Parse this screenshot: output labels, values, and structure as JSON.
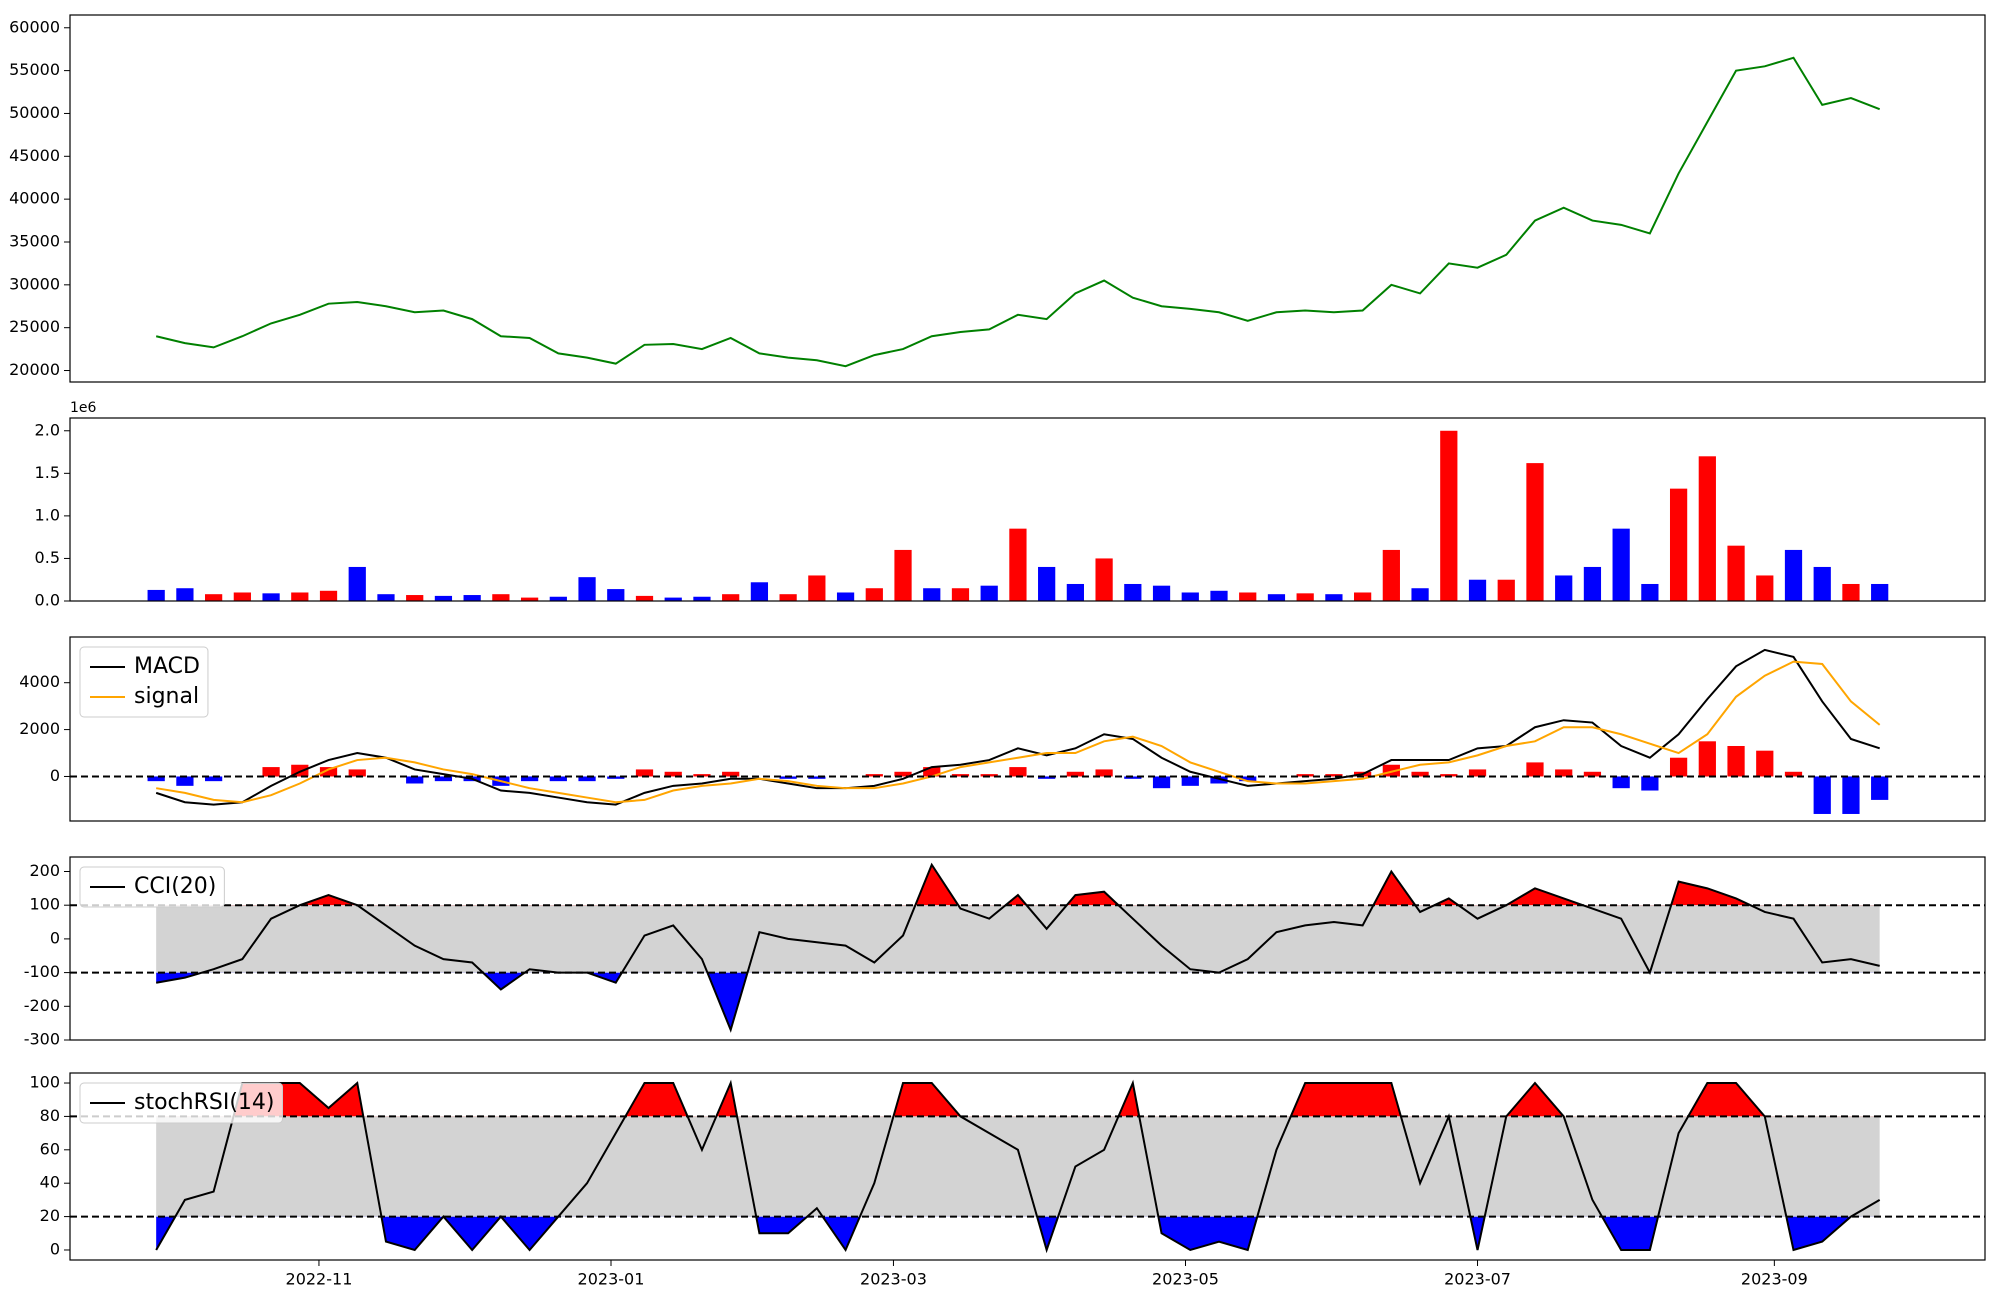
{
  "chart_data": [
    {
      "type": "line",
      "x": [
        -34,
        -28,
        -22,
        -16,
        -10,
        -4,
        2,
        8,
        14,
        20,
        26,
        32,
        38,
        44,
        50,
        56,
        62,
        68,
        74,
        80,
        86,
        92,
        98,
        104,
        110,
        116,
        122,
        128,
        134,
        140,
        146,
        152,
        158,
        164,
        170,
        176,
        182,
        188,
        194,
        200,
        206,
        212,
        218,
        224,
        230,
        236,
        242,
        248,
        254,
        260,
        266,
        272,
        278,
        284,
        290,
        296,
        302,
        308,
        314,
        320,
        326
      ],
      "values": [
        24000,
        23200,
        22700,
        24000,
        25500,
        26500,
        27800,
        28000,
        27500,
        26800,
        27000,
        26000,
        24000,
        23800,
        22000,
        21500,
        20800,
        23000,
        23100,
        22500,
        23800,
        22000,
        21500,
        21200,
        20500,
        21800,
        22500,
        24000,
        24500,
        24800,
        26500,
        26000,
        29000,
        30500,
        28500,
        27500,
        27200,
        26800,
        25800,
        26800,
        27000,
        26800,
        27000,
        30000,
        29000,
        32500,
        32000,
        33500,
        37500,
        39000,
        37500,
        37000,
        36000,
        43000,
        49000,
        55000,
        55500,
        56500,
        51000,
        51800,
        50500
      ],
      "color": "#008000",
      "xlim": [
        -52,
        348
      ],
      "ylim": [
        18660,
        61490
      ],
      "yticks": [
        20000,
        25000,
        30000,
        35000,
        40000,
        45000,
        50000,
        55000,
        60000
      ]
    },
    {
      "type": "bar",
      "x": [
        -34,
        -28,
        -22,
        -16,
        -10,
        -4,
        2,
        8,
        14,
        20,
        26,
        32,
        38,
        44,
        50,
        56,
        62,
        68,
        74,
        80,
        86,
        92,
        98,
        104,
        110,
        116,
        122,
        128,
        134,
        140,
        146,
        152,
        158,
        164,
        170,
        176,
        182,
        188,
        194,
        200,
        206,
        212,
        218,
        224,
        230,
        236,
        242,
        248,
        254,
        260,
        266,
        272,
        278,
        284,
        290,
        296,
        302,
        308,
        314,
        320,
        326
      ],
      "values": [
        130000,
        150000,
        80000,
        100000,
        90000,
        100000,
        120000,
        400000,
        80000,
        70000,
        60000,
        70000,
        80000,
        40000,
        50000,
        280000,
        140000,
        60000,
        40000,
        50000,
        80000,
        220000,
        80000,
        300000,
        100000,
        150000,
        600000,
        150000,
        150000,
        180000,
        850000,
        400000,
        200000,
        500000,
        200000,
        180000,
        100000,
        120000,
        100000,
        80000,
        90000,
        80000,
        100000,
        600000,
        150000,
        2000000,
        250000,
        250000,
        1620000,
        300000,
        400000,
        850000,
        200000,
        1320000,
        1700000,
        650000,
        300000,
        600000,
        400000,
        200000,
        200000
      ],
      "colors": [
        "#0000ff",
        "#0000ff",
        "#ff0000",
        "#ff0000",
        "#0000ff",
        "#ff0000",
        "#ff0000",
        "#0000ff",
        "#0000ff",
        "#ff0000",
        "#0000ff",
        "#0000ff",
        "#ff0000",
        "#ff0000",
        "#0000ff",
        "#0000ff",
        "#0000ff",
        "#ff0000",
        "#0000ff",
        "#0000ff",
        "#ff0000",
        "#0000ff",
        "#ff0000",
        "#ff0000",
        "#0000ff",
        "#ff0000",
        "#ff0000",
        "#0000ff",
        "#ff0000",
        "#0000ff",
        "#ff0000",
        "#0000ff",
        "#0000ff",
        "#ff0000",
        "#0000ff",
        "#0000ff",
        "#0000ff",
        "#0000ff",
        "#ff0000",
        "#0000ff",
        "#ff0000",
        "#0000ff",
        "#ff0000",
        "#ff0000",
        "#0000ff",
        "#ff0000",
        "#0000ff",
        "#ff0000",
        "#ff0000",
        "#0000ff",
        "#0000ff",
        "#0000ff",
        "#0000ff",
        "#ff0000",
        "#ff0000",
        "#ff0000",
        "#ff0000",
        "#0000ff",
        "#0000ff",
        "#ff0000",
        "#0000ff"
      ],
      "offset_label": "1e6",
      "xlim": [
        -52,
        348
      ],
      "ylim": [
        0,
        2150000
      ],
      "yticks": [
        {
          "value": 0,
          "label": "0.0"
        },
        {
          "value": 500000,
          "label": "0.5"
        },
        {
          "value": 1000000,
          "label": "1.0"
        },
        {
          "value": 1500000,
          "label": "1.5"
        },
        {
          "value": 2000000,
          "label": "2.0"
        }
      ]
    },
    {
      "type": "line",
      "x": [
        -34,
        -28,
        -22,
        -16,
        -10,
        -4,
        2,
        8,
        14,
        20,
        26,
        32,
        38,
        44,
        50,
        56,
        62,
        68,
        74,
        80,
        86,
        92,
        98,
        104,
        110,
        116,
        122,
        128,
        134,
        140,
        146,
        152,
        158,
        164,
        170,
        176,
        182,
        188,
        194,
        200,
        206,
        212,
        218,
        224,
        230,
        236,
        242,
        248,
        254,
        260,
        266,
        272,
        278,
        284,
        290,
        296,
        302,
        308,
        314,
        320,
        326
      ],
      "series": [
        {
          "name": "MACD",
          "color": "#000000",
          "values": [
            -700,
            -1100,
            -1200,
            -1100,
            -400,
            200,
            700,
            1000,
            800,
            300,
            100,
            -100,
            -600,
            -700,
            -900,
            -1100,
            -1200,
            -700,
            -400,
            -300,
            -100,
            -100,
            -300,
            -500,
            -500,
            -400,
            -100,
            400,
            500,
            700,
            1200,
            900,
            1200,
            1800,
            1600,
            800,
            200,
            -100,
            -400,
            -300,
            -200,
            -100,
            100,
            700,
            700,
            700,
            1200,
            1300,
            2100,
            2400,
            2300,
            1300,
            800,
            1800,
            3300,
            4700,
            5400,
            5100,
            3200,
            1600,
            1200
          ]
        },
        {
          "name": "signal",
          "color": "#ffa500",
          "values": [
            -500,
            -700,
            -1000,
            -1100,
            -800,
            -300,
            300,
            700,
            800,
            600,
            300,
            100,
            -200,
            -500,
            -700,
            -900,
            -1100,
            -1000,
            -600,
            -400,
            -300,
            -100,
            -200,
            -400,
            -500,
            -500,
            -300,
            0,
            400,
            600,
            800,
            1000,
            1000,
            1500,
            1700,
            1300,
            600,
            200,
            -200,
            -300,
            -300,
            -200,
            -100,
            200,
            500,
            600,
            900,
            1300,
            1500,
            2100,
            2100,
            1800,
            1400,
            1000,
            1800,
            3400,
            4300,
            4900,
            4800,
            3200,
            2200
          ]
        }
      ],
      "histogram": {
        "up_color": "#ff0000",
        "down_color": "#0000ff",
        "values": [
          -200,
          -400,
          -200,
          0,
          400,
          500,
          400,
          300,
          0,
          -300,
          -200,
          -200,
          -400,
          -200,
          -200,
          -200,
          -100,
          300,
          200,
          100,
          200,
          0,
          -100,
          -100,
          0,
          100,
          200,
          400,
          100,
          100,
          400,
          -100,
          200,
          300,
          -100,
          -500,
          -400,
          -300,
          -200,
          0,
          100,
          100,
          200,
          500,
          200,
          100,
          300,
          0,
          600,
          300,
          200,
          -500,
          -600,
          800,
          1500,
          1300,
          1100,
          200,
          -1600,
          -1600,
          -1000
        ]
      },
      "reference_lines": [
        0
      ],
      "legend": "upper left",
      "xlim": [
        -52,
        348
      ],
      "ylim": [
        -1900,
        5950
      ],
      "yticks": [
        0,
        2000,
        4000
      ]
    },
    {
      "type": "line",
      "x": [
        -34,
        -28,
        -22,
        -16,
        -10,
        -4,
        2,
        8,
        14,
        20,
        26,
        32,
        38,
        44,
        50,
        56,
        62,
        68,
        74,
        80,
        86,
        92,
        98,
        104,
        110,
        116,
        122,
        128,
        134,
        140,
        146,
        152,
        158,
        164,
        170,
        176,
        182,
        188,
        194,
        200,
        206,
        212,
        218,
        224,
        230,
        236,
        242,
        248,
        254,
        260,
        266,
        272,
        278,
        284,
        290,
        296,
        302,
        308,
        314,
        320,
        326
      ],
      "series": [
        {
          "name": "CCI(20)",
          "color": "#000000",
          "values": [
            -130,
            -115,
            -90,
            -60,
            60,
            100,
            130,
            100,
            40,
            -20,
            -60,
            -70,
            -150,
            -90,
            -100,
            -100,
            -130,
            10,
            40,
            -60,
            -270,
            20,
            0,
            -10,
            -20,
            -70,
            10,
            220,
            90,
            60,
            130,
            30,
            130,
            140,
            60,
            -20,
            -90,
            -100,
            -60,
            20,
            40,
            50,
            40,
            200,
            80,
            120,
            60,
            100,
            150,
            120,
            90,
            60,
            -100,
            170,
            150,
            120,
            80,
            60,
            -70,
            -60,
            -80
          ]
        }
      ],
      "bands": {
        "upper": 100,
        "lower": -100,
        "band_color": "#d3d3d3",
        "upper_color": "#ff0000",
        "lower_color": "#0000ff"
      },
      "legend": "upper left",
      "xlim": [
        -52,
        348
      ],
      "ylim": [
        -300,
        243
      ],
      "yticks": [
        -300,
        -200,
        -100,
        0,
        100,
        200
      ]
    },
    {
      "type": "line",
      "x": [
        -34,
        -28,
        -22,
        -16,
        -10,
        -4,
        2,
        8,
        14,
        20,
        26,
        32,
        38,
        44,
        50,
        56,
        62,
        68,
        74,
        80,
        86,
        92,
        98,
        104,
        110,
        116,
        122,
        128,
        134,
        140,
        146,
        152,
        158,
        164,
        170,
        176,
        182,
        188,
        194,
        200,
        206,
        212,
        218,
        224,
        230,
        236,
        242,
        248,
        254,
        260,
        266,
        272,
        278,
        284,
        290,
        296,
        302,
        308,
        314,
        320,
        326
      ],
      "series": [
        {
          "name": "stochRSI(14)",
          "color": "#000000",
          "values": [
            0,
            30,
            35,
            100,
            100,
            100,
            85,
            100,
            5,
            0,
            20,
            0,
            20,
            0,
            20,
            40,
            70,
            100,
            100,
            60,
            100,
            10,
            10,
            25,
            0,
            40,
            100,
            100,
            80,
            70,
            60,
            0,
            50,
            60,
            100,
            10,
            0,
            5,
            0,
            60,
            100,
            100,
            100,
            100,
            40,
            80,
            0,
            80,
            100,
            80,
            30,
            0,
            0,
            70,
            100,
            100,
            80,
            0,
            5,
            20,
            30
          ]
        }
      ],
      "bands": {
        "upper": 80,
        "lower": 20,
        "band_color": "#d3d3d3",
        "upper_color": "#ff0000",
        "lower_color": "#0000ff"
      },
      "legend": "upper left",
      "xlim": [
        -52,
        348
      ],
      "ylim": [
        -6,
        106
      ],
      "yticks": [
        0,
        20,
        40,
        60,
        80,
        100
      ],
      "xticks": [
        {
          "value": 0,
          "label": "2022-11"
        },
        {
          "value": 61,
          "label": "2023-01"
        },
        {
          "value": 120,
          "label": "2023-03"
        },
        {
          "value": 181,
          "label": "2023-05"
        },
        {
          "value": 242,
          "label": "2023-07"
        },
        {
          "value": 304,
          "label": "2023-09"
        }
      ]
    }
  ]
}
